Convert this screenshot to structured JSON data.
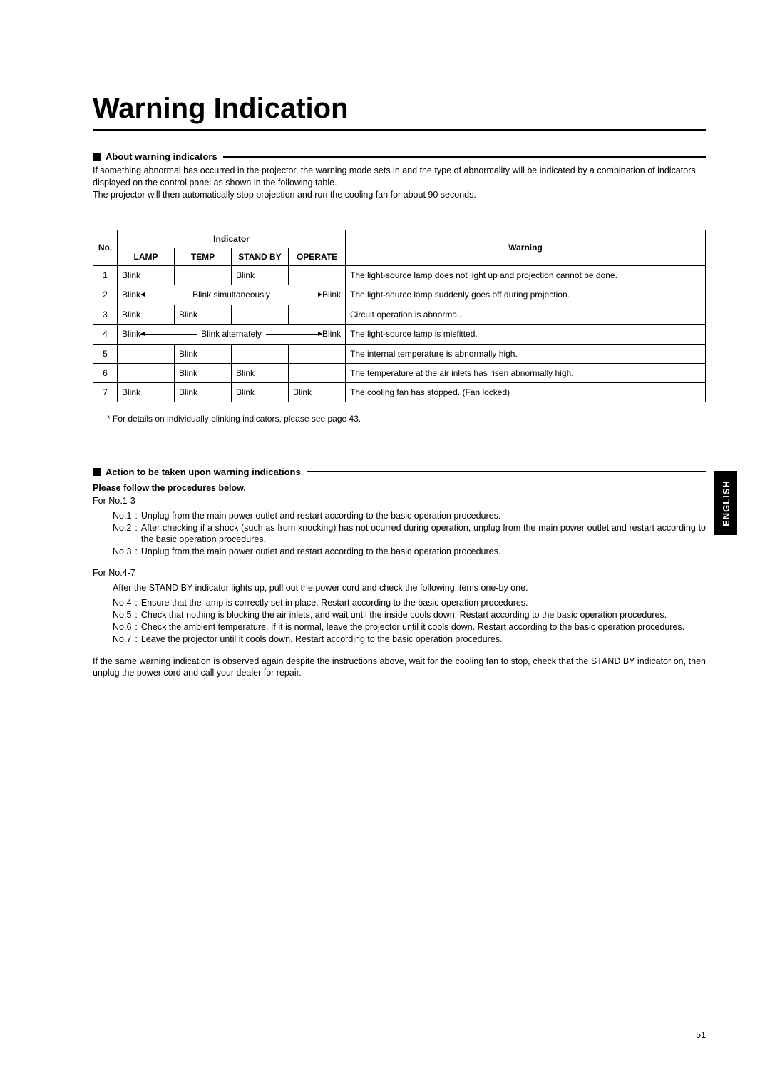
{
  "title": "Warning Indication",
  "section1": {
    "heading": "About warning indicators",
    "intro_line1": "If something abnormal has occurred in the projector, the warning mode sets in and the type of abnormality will be indicated by a combination of indicators displayed on the control panel as shown in the following table.",
    "intro_line2": "The projector will then automatically stop projection and run the cooling fan for about 90 seconds."
  },
  "table": {
    "head_no": "No.",
    "head_indicator": "Indicator",
    "head_warning": "Warning",
    "col_lamp": "LAMP",
    "col_temp": "TEMP",
    "col_standby": "STAND BY",
    "col_operate": "OPERATE",
    "rows": [
      {
        "no": "1",
        "lamp": "Blink",
        "temp": "",
        "standby": "Blink",
        "operate": "",
        "warning": "The light-source lamp does not light up and projection cannot be done."
      },
      {
        "no": "2",
        "span_left": "Blink",
        "span_label": "Blink simultaneously",
        "span_right": "Blink",
        "warning": "The light-source lamp suddenly goes off during projection."
      },
      {
        "no": "3",
        "lamp": "Blink",
        "temp": "Blink",
        "standby": "",
        "operate": "",
        "warning": "Circuit operation is abnormal."
      },
      {
        "no": "4",
        "span_left": "Blink",
        "span_label": "Blink alternately",
        "span_right": "Blink",
        "warning": "The light-source lamp is misfitted."
      },
      {
        "no": "5",
        "lamp": "",
        "temp": "Blink",
        "standby": "",
        "operate": "",
        "warning": "The internal temperature is abnormally high."
      },
      {
        "no": "6",
        "lamp": "",
        "temp": "Blink",
        "standby": "Blink",
        "operate": "",
        "warning": "The temperature at the air inlets has risen abnormally high."
      },
      {
        "no": "7",
        "lamp": "Blink",
        "temp": "Blink",
        "standby": "Blink",
        "operate": "Blink",
        "warning": "The cooling fan has stopped. (Fan locked)"
      }
    ],
    "footnote": "* For details on individually blinking indicators, please see page 43."
  },
  "section2": {
    "heading": "Action to be taken upon warning indications",
    "subhead": "Please follow the procedures below.",
    "group1_label": "For No.1-3",
    "group1": [
      {
        "key": "No.1",
        "text": "Unplug from the main power outlet and restart according to the basic operation procedures."
      },
      {
        "key": "No.2",
        "text": "After checking if a shock (such as from knocking) has not ocurred during operation, unplug from the main power outlet and restart according to the basic operation procedures."
      },
      {
        "key": "No.3",
        "text": "Unplug from the main power outlet and restart according to the basic operation procedures."
      }
    ],
    "group2_label": "For No.4-7",
    "group2_after": "After the STAND BY indicator lights up, pull out the power cord and check the following items one-by one.",
    "group2": [
      {
        "key": "No.4",
        "text": "Ensure that the lamp is correctly set in place. Restart according to the basic operation procedures."
      },
      {
        "key": "No.5",
        "text": "Check that nothing is blocking the air inlets, and wait until the inside cools down. Restart according to the basic operation procedures."
      },
      {
        "key": "No.6",
        "text": "Check the ambient temperature. If it is normal, leave the projector until it cools down. Restart according to the basic operation procedures."
      },
      {
        "key": "No.7",
        "text": "Leave the projector until it cools down. Restart according to the basic operation procedures."
      }
    ],
    "final": "If the same warning indication is observed again despite the instructions above, wait for the cooling fan to stop, check that the STAND BY indicator on, then unplug the power cord and call your dealer for repair."
  },
  "page_number": "51",
  "side_tab": "ENGLISH",
  "colors": {
    "text": "#000000",
    "background": "#ffffff",
    "tab_bg": "#000000",
    "tab_fg": "#ffffff"
  },
  "typography": {
    "title_fontsize": 40,
    "body_fontsize": 12.5,
    "table_fontsize": 12
  }
}
